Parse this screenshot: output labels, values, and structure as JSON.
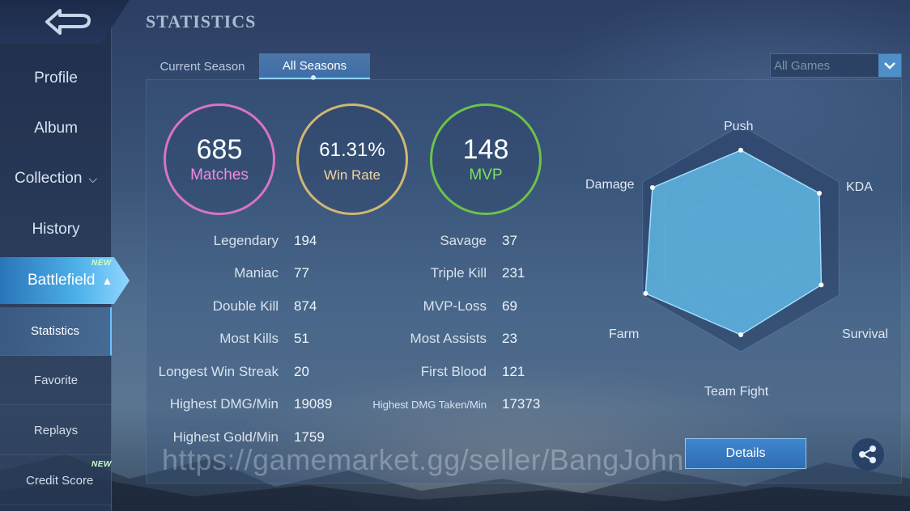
{
  "header": {
    "title": "STATISTICS"
  },
  "tabs": [
    {
      "label": "Current Season",
      "active": false
    },
    {
      "label": "All Seasons",
      "active": true
    }
  ],
  "filter": {
    "selected": "All Games"
  },
  "sidebar": {
    "items": [
      {
        "label": "Profile"
      },
      {
        "label": "Album"
      },
      {
        "label": "Collection"
      },
      {
        "label": "History"
      },
      {
        "label": "Battlefield",
        "badge": "NEW"
      }
    ],
    "sub_items": [
      {
        "label": "Statistics",
        "active": true
      },
      {
        "label": "Favorite"
      },
      {
        "label": "Replays"
      },
      {
        "label": "Credit Score",
        "badge": "NEW"
      }
    ]
  },
  "rings": {
    "matches": {
      "value": "685",
      "label": "Matches"
    },
    "win_rate": {
      "value": "61.31%",
      "label": "Win Rate"
    },
    "mvp": {
      "value": "148",
      "label": "MVP"
    }
  },
  "stats_left": [
    {
      "label": "Legendary",
      "value": "194"
    },
    {
      "label": "Maniac",
      "value": "77"
    },
    {
      "label": "Double Kill",
      "value": "874"
    },
    {
      "label": "Most Kills",
      "value": "51"
    },
    {
      "label": "Longest Win Streak",
      "value": "20"
    },
    {
      "label": "Highest DMG/Min",
      "value": "19089"
    },
    {
      "label": "Highest Gold/Min",
      "value": "1759"
    }
  ],
  "stats_right": [
    {
      "label": "Savage",
      "value": "37"
    },
    {
      "label": "Triple Kill",
      "value": "231"
    },
    {
      "label": "MVP-Loss",
      "value": "69"
    },
    {
      "label": "Most Assists",
      "value": "23"
    },
    {
      "label": "First Blood",
      "value": "121"
    },
    {
      "label": "Highest DMG Taken/Min",
      "value": "17373"
    }
  ],
  "radar": {
    "axes": [
      "Push",
      "KDA",
      "Survival",
      "Team Fight",
      "Farm",
      "Damage"
    ],
    "values": [
      0.78,
      0.8,
      0.82,
      0.85,
      0.97,
      0.9
    ]
  },
  "buttons": {
    "details": "Details"
  },
  "watermark": "https://gamemarket.gg/seller/BangJohn",
  "colors": {
    "matches_ring": "#d873c9",
    "win_rate_ring": "#d2b772",
    "mvp_ring": "#6cc24c",
    "radar_fill": "#5fb6e3",
    "accent": "#4db1ea"
  }
}
